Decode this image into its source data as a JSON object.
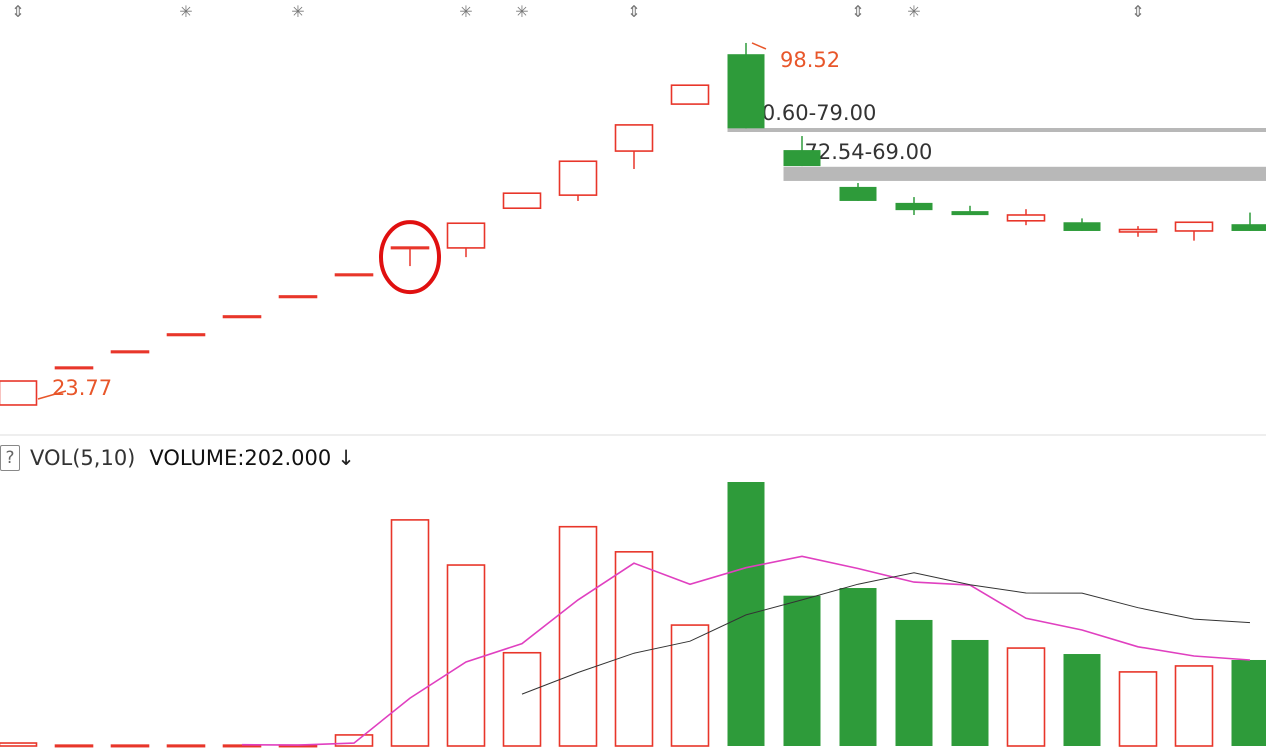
{
  "chart_data": {
    "type": "candlestick",
    "price_panel": {
      "candles": [
        {
          "o": 23.77,
          "h": 28.72,
          "l": 23.77,
          "c": 28.72
        },
        {
          "o": 31.59,
          "h": 31.59,
          "l": 31.59,
          "c": 31.59
        },
        {
          "o": 34.9,
          "h": 34.9,
          "l": 34.9,
          "c": 34.9
        },
        {
          "o": 38.43,
          "h": 38.43,
          "l": 38.43,
          "c": 38.43
        },
        {
          "o": 42.15,
          "h": 42.15,
          "l": 42.15,
          "c": 42.15
        },
        {
          "o": 46.28,
          "h": 46.28,
          "l": 46.28,
          "c": 46.28
        },
        {
          "o": 50.8,
          "h": 50.8,
          "l": 50.8,
          "c": 50.8
        },
        {
          "o": 56.37,
          "h": 56.37,
          "l": 52.45,
          "c": 56.37,
          "highlighted": true
        },
        {
          "o": 56.2,
          "h": 61.3,
          "l": 54.3,
          "c": 61.3
        },
        {
          "o": 64.4,
          "h": 67.5,
          "l": 64.4,
          "c": 67.5
        },
        {
          "o": 67.1,
          "h": 74.1,
          "l": 65.9,
          "c": 74.1
        },
        {
          "o": 76.2,
          "h": 81.6,
          "l": 72.5,
          "c": 81.6
        },
        {
          "o": 85.9,
          "h": 89.8,
          "l": 85.9,
          "c": 89.8
        },
        {
          "o": 96.2,
          "h": 98.52,
          "l": 80.9,
          "c": 80.9
        },
        {
          "o": 76.4,
          "h": 79.3,
          "l": 73.1,
          "c": 73.1
        },
        {
          "o": 68.8,
          "h": 69.6,
          "l": 65.9,
          "c": 65.9
        },
        {
          "o": 65.5,
          "h": 66.7,
          "l": 63.0,
          "c": 64.0
        },
        {
          "o": 63.8,
          "h": 64.9,
          "l": 63.0,
          "c": 63.0
        },
        {
          "o": 61.8,
          "h": 64.2,
          "l": 60.9,
          "c": 63.0
        },
        {
          "o": 61.5,
          "h": 62.3,
          "l": 59.7,
          "c": 59.7
        },
        {
          "o": 59.5,
          "h": 60.7,
          "l": 58.5,
          "c": 60.0
        },
        {
          "o": 59.7,
          "h": 61.1,
          "l": 57.7,
          "c": 61.5
        },
        {
          "o": 61.1,
          "h": 63.5,
          "l": 59.7,
          "c": 59.7
        }
      ],
      "annotations": [
        {
          "index": 0,
          "price": 23.77,
          "label": "23.77"
        },
        {
          "index": 13,
          "price": 98.52,
          "label": "98.52"
        }
      ],
      "gaps": [
        {
          "from_index": 13,
          "label": "80.60-79.00",
          "high": 80.6,
          "low": 79.0
        },
        {
          "from_index": 14,
          "label": "72.54-69.00",
          "high": 72.54,
          "low": 69.0
        }
      ],
      "event_markers": [
        {
          "index": 0,
          "icon": "double-arrow-icon"
        },
        {
          "index": 3,
          "icon": "star-burst-icon"
        },
        {
          "index": 5,
          "icon": "star-burst-icon"
        },
        {
          "index": 8,
          "icon": "star-burst-icon"
        },
        {
          "index": 9,
          "icon": "star-burst-icon"
        },
        {
          "index": 11,
          "icon": "double-arrow-icon"
        },
        {
          "index": 15,
          "icon": "double-arrow-icon"
        },
        {
          "index": 16,
          "icon": "star-burst-icon"
        },
        {
          "index": 20,
          "icon": "double-arrow-icon"
        }
      ]
    },
    "volume_panel": {
      "indicator": "VOL(5,10)",
      "readout": "VOLUME:202.000",
      "values": [
        7,
        2,
        2,
        2,
        2,
        2,
        26,
        531,
        425,
        219,
        515,
        456,
        284,
        620,
        353,
        371,
        296,
        249,
        230,
        216,
        174,
        188,
        202
      ],
      "ma_periods": [
        5,
        10
      ]
    },
    "colors": {
      "up": "#e8362a",
      "down": "#2e9b3a",
      "ma5": "#e040c0",
      "ma10": "#333333",
      "annotation": "#e8562a",
      "gap": "#b8b8b8",
      "circle": "#e01010"
    }
  }
}
